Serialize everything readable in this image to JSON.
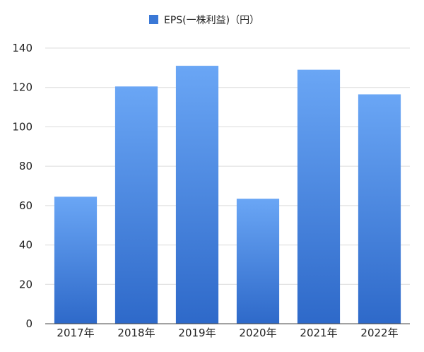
{
  "chart_data": {
    "type": "bar",
    "categories": [
      "2017年",
      "2018年",
      "2019年",
      "2020年",
      "2021年",
      "2022年"
    ],
    "series": [
      {
        "name": "EPS(一株利益)（円）",
        "values": [
          64.5,
          120.5,
          131.0,
          63.5,
          129.0,
          116.5
        ]
      }
    ],
    "ylim": [
      0,
      140
    ],
    "yticks": [
      0,
      20,
      40,
      60,
      80,
      100,
      120,
      140
    ],
    "grid": true,
    "legend_position": "top-center",
    "colors": {
      "bar_top": "#6aa6f5",
      "bar_bottom": "#2e69c9",
      "legend_swatch": "#3a78d6"
    }
  }
}
